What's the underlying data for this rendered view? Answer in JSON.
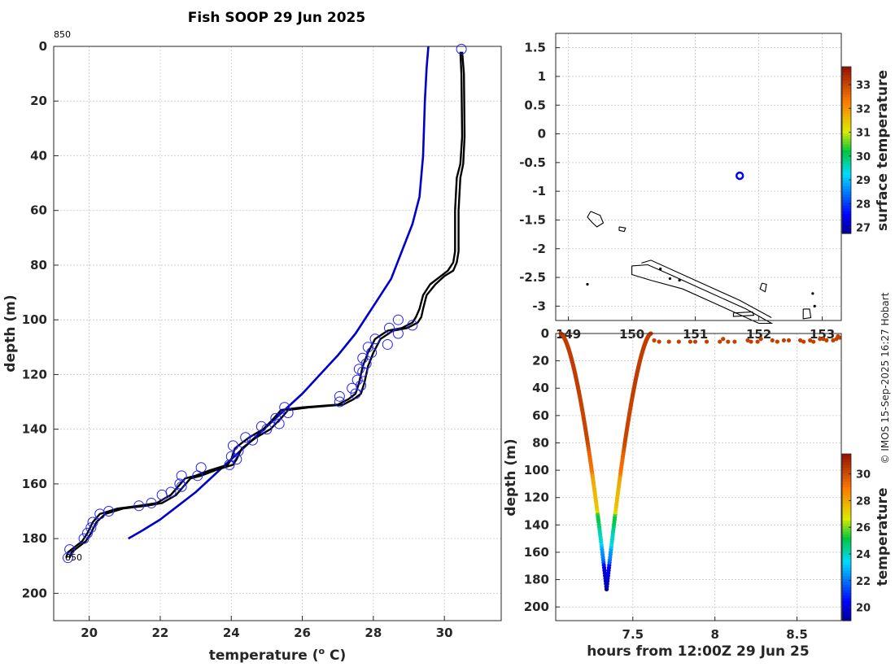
{
  "title": "Fish SOOP 29 Jun 2025",
  "credit": "© IMOS 15-Sep-2025 16:27 Hobart",
  "chart_data": [
    {
      "type": "line",
      "id": "profile",
      "xlabel": "temperature (° C)",
      "xlabel_base": "temperature (",
      "xlabel_sup": "o",
      "xlabel_end": " C)",
      "ylabel": "depth (m)",
      "xlim": [
        19.0,
        31.6
      ],
      "ylim": [
        210,
        0
      ],
      "xticks": [
        20,
        22,
        24,
        26,
        28,
        30
      ],
      "yticks": [
        0,
        20,
        40,
        60,
        80,
        100,
        120,
        140,
        160,
        180,
        200
      ],
      "start_label": "850",
      "end_label": "850",
      "series": [
        {
          "name": "climatology",
          "color": "#0000cc",
          "points": [
            [
              29.55,
              0
            ],
            [
              29.5,
              8
            ],
            [
              29.45,
              20
            ],
            [
              29.4,
              40
            ],
            [
              29.3,
              55
            ],
            [
              29.1,
              65
            ],
            [
              28.8,
              75
            ],
            [
              28.5,
              85
            ],
            [
              28.0,
              95
            ],
            [
              27.5,
              105
            ],
            [
              27.0,
              113
            ],
            [
              26.5,
              120
            ],
            [
              26.0,
              127
            ],
            [
              25.5,
              133
            ],
            [
              25.0,
              139
            ],
            [
              24.5,
              145
            ],
            [
              24.0,
              151
            ],
            [
              23.5,
              157
            ],
            [
              23.0,
              163
            ],
            [
              22.5,
              168
            ],
            [
              22.0,
              173
            ],
            [
              21.5,
              177
            ],
            [
              21.1,
              180
            ]
          ]
        },
        {
          "name": "profile-left",
          "color": "#000000",
          "points": [
            [
              30.45,
              2
            ],
            [
              30.48,
              10
            ],
            [
              30.5,
              33
            ],
            [
              30.45,
              43
            ],
            [
              30.35,
              48
            ],
            [
              30.3,
              60
            ],
            [
              30.3,
              75
            ],
            [
              30.25,
              79
            ],
            [
              30.1,
              82
            ],
            [
              29.9,
              84
            ],
            [
              29.6,
              87
            ],
            [
              29.4,
              91
            ],
            [
              29.3,
              96
            ],
            [
              29.2,
              99
            ],
            [
              29.1,
              101
            ],
            [
              28.8,
              103
            ],
            [
              28.4,
              104
            ],
            [
              28.05,
              107
            ],
            [
              27.85,
              112
            ],
            [
              27.7,
              117
            ],
            [
              27.6,
              123
            ],
            [
              27.5,
              127
            ],
            [
              27.3,
              129
            ],
            [
              27.0,
              131
            ],
            [
              26.0,
              132
            ],
            [
              25.4,
              133
            ],
            [
              25.2,
              136
            ],
            [
              24.9,
              140
            ],
            [
              24.5,
              143
            ],
            [
              24.1,
              147
            ],
            [
              24.0,
              151
            ],
            [
              23.9,
              153
            ],
            [
              23.4,
              155
            ],
            [
              23.0,
              157
            ],
            [
              22.7,
              158
            ],
            [
              22.5,
              161
            ],
            [
              22.3,
              164
            ],
            [
              21.9,
              167
            ],
            [
              21.4,
              168
            ],
            [
              20.8,
              169
            ],
            [
              20.3,
              171
            ],
            [
              20.1,
              174
            ],
            [
              19.95,
              178
            ],
            [
              19.8,
              181
            ],
            [
              19.6,
              183
            ],
            [
              19.4,
              185
            ],
            [
              19.35,
              187
            ]
          ]
        },
        {
          "name": "profile-right",
          "color": "#000000",
          "points": [
            [
              30.5,
              2
            ],
            [
              30.55,
              10
            ],
            [
              30.57,
              33
            ],
            [
              30.53,
              43
            ],
            [
              30.45,
              48
            ],
            [
              30.4,
              60
            ],
            [
              30.4,
              75
            ],
            [
              30.35,
              79
            ],
            [
              30.25,
              82
            ],
            [
              30.0,
              84
            ],
            [
              29.75,
              87
            ],
            [
              29.5,
              91
            ],
            [
              29.4,
              96
            ],
            [
              29.35,
              99
            ],
            [
              29.25,
              101
            ],
            [
              28.95,
              103
            ],
            [
              28.55,
              104
            ],
            [
              28.2,
              107
            ],
            [
              28.0,
              112
            ],
            [
              27.85,
              117
            ],
            [
              27.75,
              123
            ],
            [
              27.65,
              127
            ],
            [
              27.45,
              129
            ],
            [
              27.15,
              131
            ],
            [
              26.2,
              132
            ],
            [
              25.6,
              133
            ],
            [
              25.4,
              136
            ],
            [
              25.1,
              140
            ],
            [
              24.7,
              143
            ],
            [
              24.3,
              147
            ],
            [
              24.15,
              151
            ],
            [
              24.05,
              153
            ],
            [
              23.55,
              155
            ],
            [
              23.15,
              157
            ],
            [
              22.85,
              158
            ],
            [
              22.65,
              161
            ],
            [
              22.45,
              164
            ],
            [
              22.05,
              167
            ],
            [
              21.6,
              168
            ],
            [
              20.95,
              169
            ],
            [
              20.45,
              171
            ],
            [
              20.2,
              174
            ],
            [
              20.05,
              178
            ],
            [
              19.9,
              181
            ],
            [
              19.7,
              183
            ],
            [
              19.5,
              185
            ],
            [
              19.45,
              187
            ]
          ]
        }
      ],
      "markers": [
        [
          30.48,
          1
        ],
        [
          28.7,
          100
        ],
        [
          29.1,
          102
        ],
        [
          28.45,
          103
        ],
        [
          28.7,
          105
        ],
        [
          28.05,
          107
        ],
        [
          28.4,
          109
        ],
        [
          27.85,
          110
        ],
        [
          27.95,
          112
        ],
        [
          27.7,
          114
        ],
        [
          27.8,
          116
        ],
        [
          27.6,
          118
        ],
        [
          27.7,
          119
        ],
        [
          27.55,
          122
        ],
        [
          27.65,
          124
        ],
        [
          27.4,
          125
        ],
        [
          27.5,
          127
        ],
        [
          27.05,
          128
        ],
        [
          27.05,
          130
        ],
        [
          25.5,
          132
        ],
        [
          25.6,
          134
        ],
        [
          25.25,
          136
        ],
        [
          25.35,
          138
        ],
        [
          24.85,
          139
        ],
        [
          25.0,
          140
        ],
        [
          24.4,
          143
        ],
        [
          24.6,
          144
        ],
        [
          24.05,
          146
        ],
        [
          24.2,
          148
        ],
        [
          24.0,
          150
        ],
        [
          24.15,
          151
        ],
        [
          23.95,
          153
        ],
        [
          23.15,
          154
        ],
        [
          23.05,
          157
        ],
        [
          22.6,
          157
        ],
        [
          22.55,
          160
        ],
        [
          22.6,
          161
        ],
        [
          22.3,
          163
        ],
        [
          22.05,
          164
        ],
        [
          21.75,
          167
        ],
        [
          21.4,
          168
        ],
        [
          20.55,
          170
        ],
        [
          20.3,
          171
        ],
        [
          20.1,
          174
        ],
        [
          20.05,
          176
        ],
        [
          19.95,
          178
        ],
        [
          19.85,
          180
        ],
        [
          19.45,
          184
        ],
        [
          19.4,
          187
        ]
      ]
    },
    {
      "type": "scatter",
      "id": "map",
      "xlim": [
        148.8,
        153.3
      ],
      "ylim": [
        -3.25,
        1.75
      ],
      "xticks": [
        149,
        150,
        151,
        152,
        153
      ],
      "yticks": [
        1.5,
        1,
        0.5,
        0,
        -0.5,
        -1,
        -1.5,
        -2,
        -2.5,
        -3
      ],
      "ytick_labels": [
        "1.5",
        "1",
        "0.5",
        "0",
        "-0.5",
        "-1",
        "-1.5",
        "-2",
        "-2.5",
        "-3"
      ],
      "xtick_labels": [
        "149",
        "150",
        "151",
        "152",
        "153"
      ],
      "location": [
        151.7,
        -0.73
      ],
      "colorbar": {
        "label": "surface temperature",
        "ticks": [
          33,
          32,
          31,
          30,
          29,
          28,
          27
        ],
        "range": [
          26.75,
          33.75
        ]
      }
    },
    {
      "type": "scatter",
      "id": "depth-time",
      "xlabel": "hours from 12:00Z 29 Jun 25",
      "ylabel": "depth (m)",
      "xlim": [
        7.03,
        8.77
      ],
      "ylim": [
        210,
        0
      ],
      "xticks": [
        7.5,
        8,
        8.5
      ],
      "xtick_labels": [
        "7.5",
        "8",
        "8.5"
      ],
      "yticks": [
        0,
        20,
        40,
        60,
        80,
        100,
        120,
        140,
        160,
        180,
        200
      ],
      "colorbar": {
        "label": "temperature",
        "ticks": [
          30,
          28,
          26,
          24,
          22,
          20
        ],
        "range": [
          19,
          31.5
        ]
      },
      "surface_points": [
        [
          7.63,
          5
        ],
        [
          7.66,
          6
        ],
        [
          7.72,
          6
        ],
        [
          7.78,
          6
        ],
        [
          7.85,
          6
        ],
        [
          7.88,
          6
        ],
        [
          7.95,
          6
        ],
        [
          8.03,
          6
        ],
        [
          8.05,
          4
        ],
        [
          8.08,
          6
        ],
        [
          8.12,
          6
        ],
        [
          8.2,
          5
        ],
        [
          8.22,
          6
        ],
        [
          8.26,
          6
        ],
        [
          8.28,
          4
        ],
        [
          8.35,
          5
        ],
        [
          8.38,
          6
        ],
        [
          8.42,
          5
        ],
        [
          8.45,
          5
        ],
        [
          8.52,
          5
        ],
        [
          8.54,
          6
        ],
        [
          8.58,
          5
        ],
        [
          8.6,
          6
        ],
        [
          8.64,
          4
        ],
        [
          8.66,
          4
        ],
        [
          8.68,
          5
        ],
        [
          8.72,
          5
        ],
        [
          8.74,
          4
        ],
        [
          8.76,
          3
        ],
        [
          8.75,
          2
        ]
      ]
    }
  ]
}
